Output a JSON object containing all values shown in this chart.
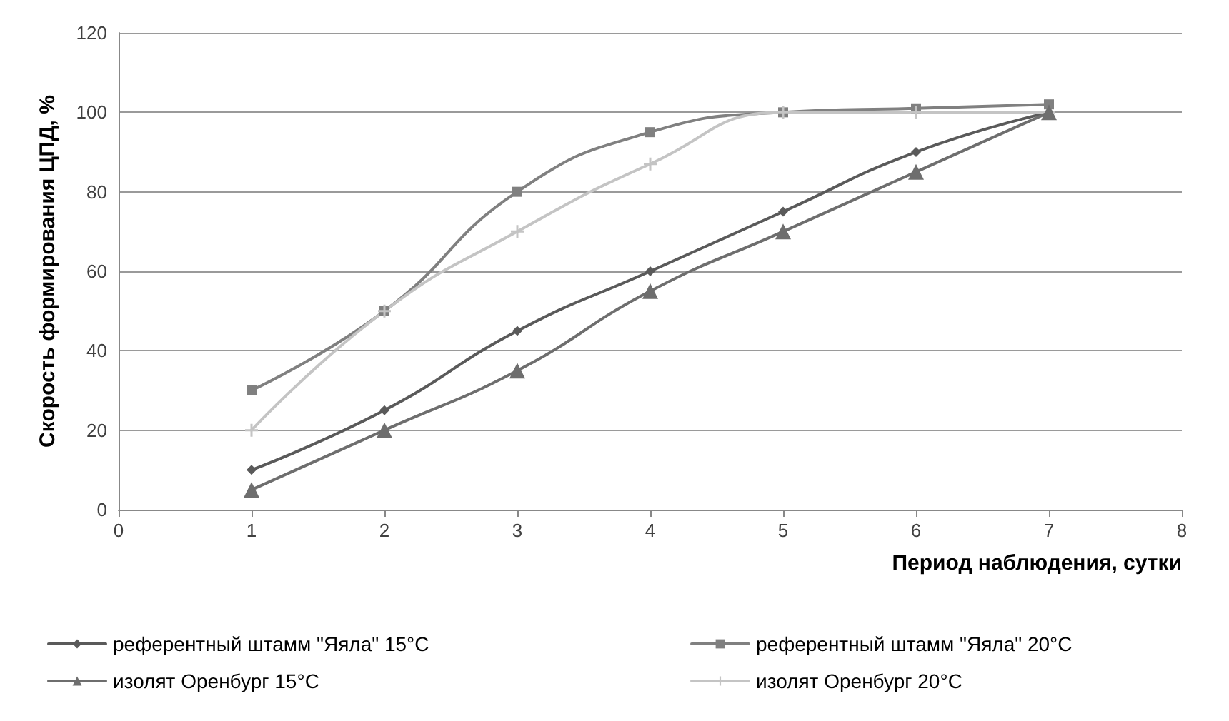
{
  "chart_data": {
    "type": "line",
    "xlabel": "Период наблюдения, сутки",
    "ylabel": "Скорость формирования ЦПД, %",
    "x": [
      1,
      2,
      3,
      4,
      5,
      6,
      7
    ],
    "series": [
      {
        "name": "референтный штамм \"Яяла\" 15°C",
        "color": "#5a5a5a",
        "marker": "diamond",
        "values": [
          10,
          25,
          45,
          60,
          75,
          90,
          100
        ]
      },
      {
        "name": "референтный штамм \"Яяла\" 20°C",
        "color": "#808080",
        "marker": "square",
        "values": [
          30,
          50,
          80,
          95,
          100,
          101,
          102
        ]
      },
      {
        "name": "изолят Оренбург 15°C",
        "color": "#6e6e6e",
        "marker": "triangle",
        "values": [
          5,
          20,
          35,
          55,
          70,
          85,
          100
        ]
      },
      {
        "name": "изолят Оренбург 20°C",
        "color": "#c4c4c4",
        "marker": "cross",
        "values": [
          20,
          50,
          70,
          87,
          100,
          100,
          100
        ]
      }
    ],
    "xlim": [
      0,
      8
    ],
    "xticks": [
      0,
      1,
      2,
      3,
      4,
      5,
      6,
      7,
      8
    ],
    "ylim": [
      0,
      120
    ],
    "yticks": [
      0,
      20,
      40,
      60,
      80,
      100,
      120
    ],
    "grid": "y",
    "legend": "bottom",
    "line_style": "solid"
  }
}
